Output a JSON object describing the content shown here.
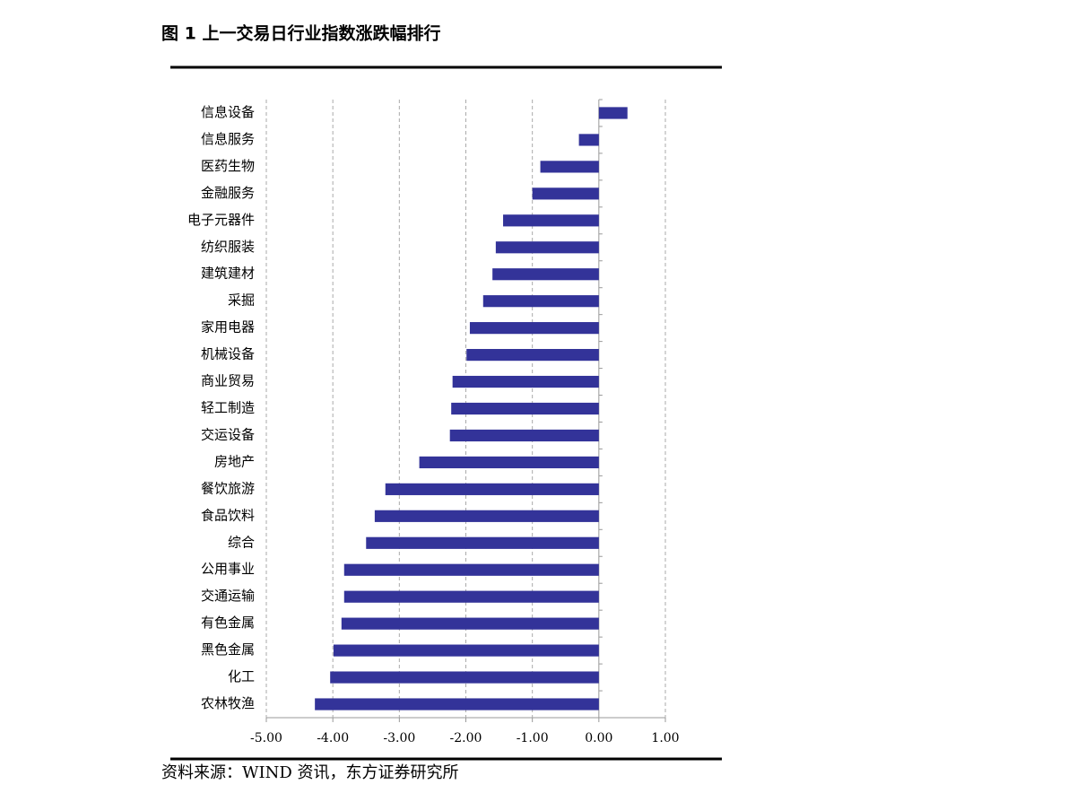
{
  "chart_data": {
    "type": "barh",
    "title": "图 1 上一交易日行业指数涨跌幅排行",
    "source": "资料来源：WIND 资讯，东方证券研究所",
    "categories": [
      "信息设备",
      "信息服务",
      "医药生物",
      "金融服务",
      "电子元器件",
      "纺织服装",
      "建筑建材",
      "采掘",
      "家用电器",
      "机械设备",
      "商业贸易",
      "轻工制造",
      "交运设备",
      "房地产",
      "餐饮旅游",
      "食品饮料",
      "综合",
      "公用事业",
      "交通运输",
      "有色金属",
      "黑色金属",
      "化工",
      "农林牧渔"
    ],
    "values": [
      0.43,
      -0.3,
      -0.88,
      -1.0,
      -1.44,
      -1.55,
      -1.6,
      -1.74,
      -1.94,
      -1.99,
      -2.2,
      -2.22,
      -2.24,
      -2.7,
      -3.21,
      -3.37,
      -3.5,
      -3.83,
      -3.83,
      -3.87,
      -3.99,
      -4.04,
      -4.27
    ],
    "color": "#333399",
    "xlim": [
      -5,
      1
    ],
    "xticks": [
      {
        "value": -5,
        "label": "-5.00"
      },
      {
        "value": -4,
        "label": "-4.00"
      },
      {
        "value": -3,
        "label": "-3.00"
      },
      {
        "value": -2,
        "label": "-2.00"
      },
      {
        "value": -1,
        "label": "-1.00"
      },
      {
        "value": 0,
        "label": "0.00"
      },
      {
        "value": 1,
        "label": "1.00"
      }
    ],
    "grid": true
  }
}
